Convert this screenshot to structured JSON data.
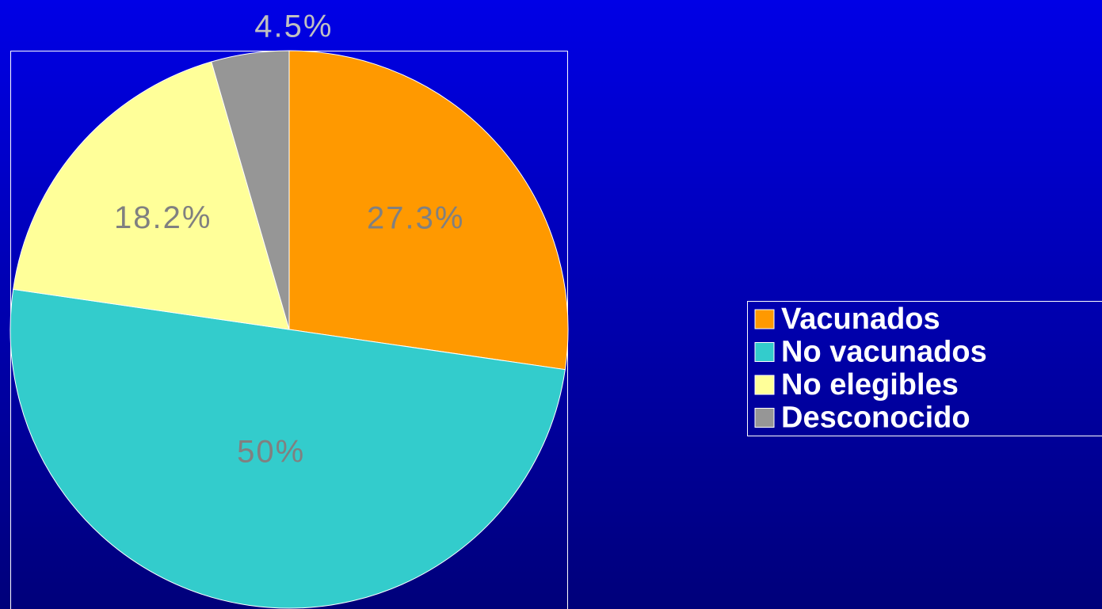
{
  "chart_data": {
    "type": "pie",
    "categories": [
      "Vacunados",
      "No vacunados",
      "No elegibles",
      "Desconocido"
    ],
    "values": [
      27.3,
      50,
      18.2,
      4.5
    ],
    "value_labels": [
      "27.3%",
      "50%",
      "18.2%",
      "4.5%"
    ],
    "colors": [
      "#ff9900",
      "#33cccc",
      "#ffff99",
      "#969696"
    ],
    "legend": "right"
  }
}
